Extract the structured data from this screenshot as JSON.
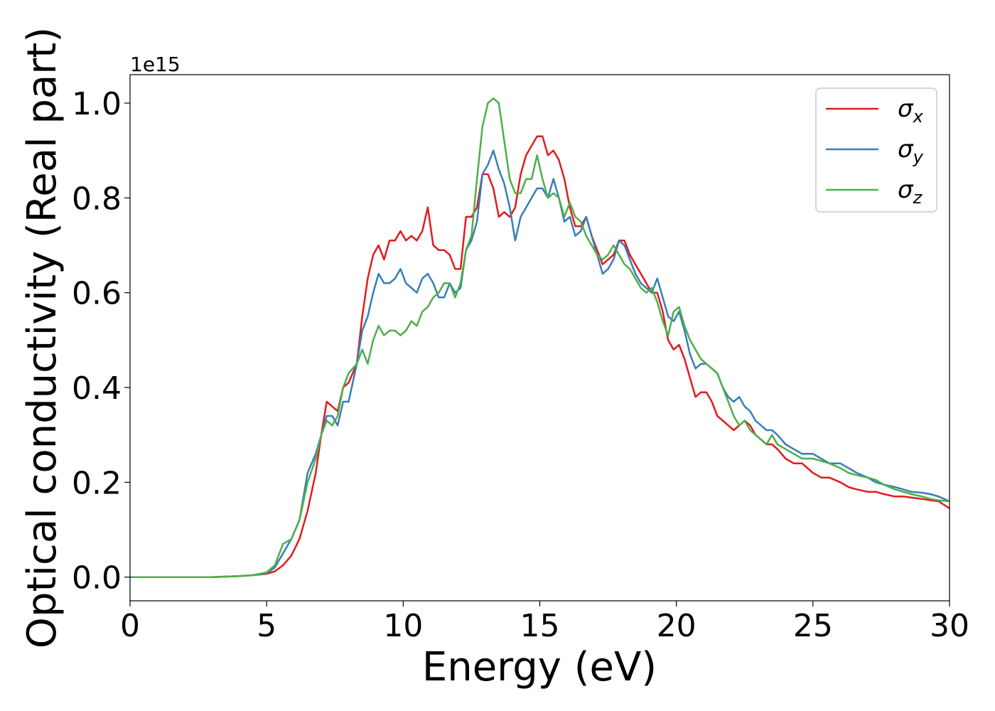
{
  "chart_data": {
    "type": "line",
    "title": "",
    "xlabel": "Energy (eV)",
    "ylabel": "Optical conductivity (Real part)",
    "y_offset_label": "1e15",
    "xlim": [
      0,
      30
    ],
    "ylim": [
      -0.05,
      1.06
    ],
    "xticks": [
      0,
      5,
      10,
      15,
      20,
      25,
      30
    ],
    "xtick_labels": [
      "0",
      "5",
      "10",
      "15",
      "20",
      "25",
      "30"
    ],
    "yticks": [
      0.0,
      0.2,
      0.4,
      0.6,
      0.8,
      1.0
    ],
    "ytick_labels": [
      "0.0",
      "0.2",
      "0.4",
      "0.6",
      "0.8",
      "1.0"
    ],
    "grid": false,
    "legend": {
      "placement": "top-right"
    },
    "series": [
      {
        "name": "σ",
        "subscript": "x",
        "color": "#e41a1c",
        "x": [
          0,
          1,
          2,
          3,
          4,
          4.5,
          5,
          5.3,
          5.6,
          5.9,
          6.2,
          6.5,
          6.8,
          7.0,
          7.2,
          7.4,
          7.6,
          7.8,
          8.0,
          8.3,
          8.5,
          8.7,
          8.9,
          9.1,
          9.3,
          9.5,
          9.7,
          9.9,
          10.1,
          10.3,
          10.5,
          10.7,
          10.9,
          11.1,
          11.3,
          11.5,
          11.7,
          11.9,
          12.1,
          12.3,
          12.5,
          12.7,
          12.9,
          13.1,
          13.3,
          13.5,
          13.7,
          13.9,
          14.1,
          14.3,
          14.5,
          14.7,
          14.9,
          15.1,
          15.3,
          15.5,
          15.7,
          15.9,
          16.1,
          16.3,
          16.5,
          16.7,
          16.9,
          17.1,
          17.3,
          17.5,
          17.7,
          17.9,
          18.1,
          18.3,
          18.5,
          18.7,
          18.9,
          19.1,
          19.3,
          19.5,
          19.7,
          19.9,
          20.1,
          20.3,
          20.5,
          20.7,
          20.9,
          21.1,
          21.3,
          21.5,
          21.7,
          21.9,
          22.1,
          22.3,
          22.5,
          22.7,
          22.9,
          23.1,
          23.3,
          23.5,
          23.7,
          24.0,
          24.3,
          24.6,
          25.0,
          25.3,
          25.6,
          26.0,
          26.3,
          26.6,
          27.0,
          27.3,
          27.6,
          28.0,
          28.3,
          28.6,
          29.0,
          29.3,
          29.6,
          30
        ],
        "y": [
          0,
          0,
          0,
          0,
          0.002,
          0.004,
          0.007,
          0.012,
          0.025,
          0.045,
          0.08,
          0.14,
          0.22,
          0.3,
          0.37,
          0.36,
          0.35,
          0.4,
          0.41,
          0.45,
          0.55,
          0.63,
          0.68,
          0.7,
          0.67,
          0.71,
          0.71,
          0.73,
          0.71,
          0.72,
          0.71,
          0.73,
          0.78,
          0.7,
          0.69,
          0.69,
          0.68,
          0.65,
          0.65,
          0.76,
          0.76,
          0.78,
          0.85,
          0.85,
          0.82,
          0.76,
          0.77,
          0.76,
          0.78,
          0.85,
          0.89,
          0.91,
          0.93,
          0.93,
          0.89,
          0.9,
          0.88,
          0.84,
          0.78,
          0.74,
          0.74,
          0.76,
          0.72,
          0.69,
          0.66,
          0.67,
          0.68,
          0.71,
          0.71,
          0.68,
          0.66,
          0.64,
          0.62,
          0.6,
          0.6,
          0.56,
          0.5,
          0.48,
          0.49,
          0.46,
          0.42,
          0.38,
          0.39,
          0.39,
          0.37,
          0.34,
          0.33,
          0.32,
          0.31,
          0.32,
          0.33,
          0.32,
          0.3,
          0.29,
          0.28,
          0.28,
          0.27,
          0.25,
          0.24,
          0.24,
          0.22,
          0.21,
          0.21,
          0.2,
          0.19,
          0.185,
          0.18,
          0.18,
          0.175,
          0.17,
          0.17,
          0.168,
          0.165,
          0.162,
          0.16,
          0.145
        ]
      },
      {
        "name": "σ",
        "subscript": "y",
        "color": "#377eb8",
        "x": [
          0,
          1,
          2,
          3,
          4,
          4.5,
          5,
          5.3,
          5.6,
          5.9,
          6.2,
          6.5,
          6.8,
          7.0,
          7.2,
          7.4,
          7.6,
          7.8,
          8.0,
          8.3,
          8.5,
          8.7,
          8.9,
          9.1,
          9.3,
          9.5,
          9.7,
          9.9,
          10.1,
          10.3,
          10.5,
          10.7,
          10.9,
          11.1,
          11.3,
          11.5,
          11.7,
          11.9,
          12.1,
          12.3,
          12.5,
          12.7,
          12.9,
          13.1,
          13.3,
          13.5,
          13.7,
          13.9,
          14.1,
          14.3,
          14.5,
          14.7,
          14.9,
          15.1,
          15.3,
          15.5,
          15.7,
          15.9,
          16.1,
          16.3,
          16.5,
          16.7,
          16.9,
          17.1,
          17.3,
          17.5,
          17.7,
          17.9,
          18.1,
          18.3,
          18.5,
          18.7,
          18.9,
          19.1,
          19.3,
          19.5,
          19.7,
          19.9,
          20.1,
          20.3,
          20.5,
          20.7,
          20.9,
          21.1,
          21.3,
          21.5,
          21.7,
          21.9,
          22.1,
          22.3,
          22.5,
          22.7,
          22.9,
          23.1,
          23.3,
          23.5,
          23.7,
          24.0,
          24.3,
          24.6,
          25.0,
          25.3,
          25.6,
          26.0,
          26.3,
          26.6,
          27.0,
          27.3,
          27.6,
          28.0,
          28.3,
          28.6,
          29.0,
          29.3,
          29.6,
          30
        ],
        "y": [
          0,
          0,
          0,
          0,
          0.002,
          0.004,
          0.008,
          0.02,
          0.05,
          0.08,
          0.12,
          0.22,
          0.26,
          0.3,
          0.34,
          0.34,
          0.32,
          0.37,
          0.37,
          0.45,
          0.52,
          0.55,
          0.6,
          0.64,
          0.62,
          0.62,
          0.63,
          0.65,
          0.62,
          0.61,
          0.6,
          0.63,
          0.64,
          0.62,
          0.59,
          0.59,
          0.62,
          0.6,
          0.61,
          0.69,
          0.71,
          0.75,
          0.85,
          0.87,
          0.9,
          0.86,
          0.83,
          0.78,
          0.71,
          0.76,
          0.78,
          0.8,
          0.82,
          0.82,
          0.8,
          0.84,
          0.8,
          0.75,
          0.76,
          0.72,
          0.73,
          0.76,
          0.72,
          0.68,
          0.64,
          0.65,
          0.67,
          0.71,
          0.7,
          0.67,
          0.64,
          0.62,
          0.61,
          0.6,
          0.63,
          0.59,
          0.55,
          0.54,
          0.56,
          0.52,
          0.47,
          0.44,
          0.45,
          0.45,
          0.44,
          0.43,
          0.4,
          0.38,
          0.37,
          0.38,
          0.36,
          0.35,
          0.33,
          0.32,
          0.31,
          0.31,
          0.3,
          0.28,
          0.27,
          0.26,
          0.26,
          0.25,
          0.24,
          0.24,
          0.23,
          0.22,
          0.21,
          0.2,
          0.195,
          0.19,
          0.185,
          0.18,
          0.178,
          0.175,
          0.17,
          0.16
        ]
      },
      {
        "name": "σ",
        "subscript": "z",
        "color": "#4daf4a",
        "x": [
          0,
          1,
          2,
          3,
          4,
          4.5,
          5,
          5.3,
          5.6,
          5.9,
          6.2,
          6.5,
          6.8,
          7.0,
          7.2,
          7.4,
          7.6,
          7.8,
          8.0,
          8.3,
          8.5,
          8.7,
          8.9,
          9.1,
          9.3,
          9.5,
          9.7,
          9.9,
          10.1,
          10.3,
          10.5,
          10.7,
          10.9,
          11.1,
          11.3,
          11.5,
          11.7,
          11.9,
          12.1,
          12.3,
          12.5,
          12.7,
          12.9,
          13.1,
          13.3,
          13.5,
          13.7,
          13.9,
          14.1,
          14.3,
          14.5,
          14.7,
          14.9,
          15.1,
          15.3,
          15.5,
          15.7,
          15.9,
          16.1,
          16.3,
          16.5,
          16.7,
          16.9,
          17.1,
          17.3,
          17.5,
          17.7,
          17.9,
          18.1,
          18.3,
          18.5,
          18.7,
          18.9,
          19.1,
          19.3,
          19.5,
          19.7,
          19.9,
          20.1,
          20.3,
          20.5,
          20.7,
          20.9,
          21.1,
          21.3,
          21.5,
          21.7,
          21.9,
          22.1,
          22.3,
          22.5,
          22.7,
          22.9,
          23.1,
          23.3,
          23.5,
          23.7,
          24.0,
          24.3,
          24.6,
          25.0,
          25.3,
          25.6,
          26.0,
          26.3,
          26.6,
          27.0,
          27.3,
          27.6,
          28.0,
          28.3,
          28.6,
          29.0,
          29.3,
          29.6,
          30
        ],
        "y": [
          0,
          0,
          0,
          0,
          0.002,
          0.004,
          0.01,
          0.025,
          0.07,
          0.08,
          0.12,
          0.2,
          0.25,
          0.3,
          0.33,
          0.32,
          0.34,
          0.4,
          0.43,
          0.45,
          0.48,
          0.45,
          0.5,
          0.53,
          0.51,
          0.52,
          0.52,
          0.51,
          0.52,
          0.54,
          0.53,
          0.56,
          0.57,
          0.59,
          0.6,
          0.62,
          0.62,
          0.59,
          0.62,
          0.69,
          0.72,
          0.84,
          0.95,
          1.0,
          1.01,
          1.0,
          0.92,
          0.84,
          0.81,
          0.81,
          0.84,
          0.84,
          0.89,
          0.84,
          0.8,
          0.81,
          0.8,
          0.76,
          0.79,
          0.76,
          0.75,
          0.72,
          0.7,
          0.68,
          0.67,
          0.68,
          0.7,
          0.68,
          0.66,
          0.65,
          0.63,
          0.61,
          0.6,
          0.61,
          0.58,
          0.54,
          0.51,
          0.56,
          0.57,
          0.53,
          0.5,
          0.48,
          0.46,
          0.45,
          0.44,
          0.43,
          0.4,
          0.37,
          0.34,
          0.32,
          0.33,
          0.31,
          0.3,
          0.29,
          0.28,
          0.3,
          0.28,
          0.27,
          0.26,
          0.25,
          0.25,
          0.245,
          0.24,
          0.23,
          0.22,
          0.215,
          0.21,
          0.205,
          0.195,
          0.185,
          0.18,
          0.175,
          0.17,
          0.165,
          0.162,
          0.16
        ]
      }
    ]
  }
}
